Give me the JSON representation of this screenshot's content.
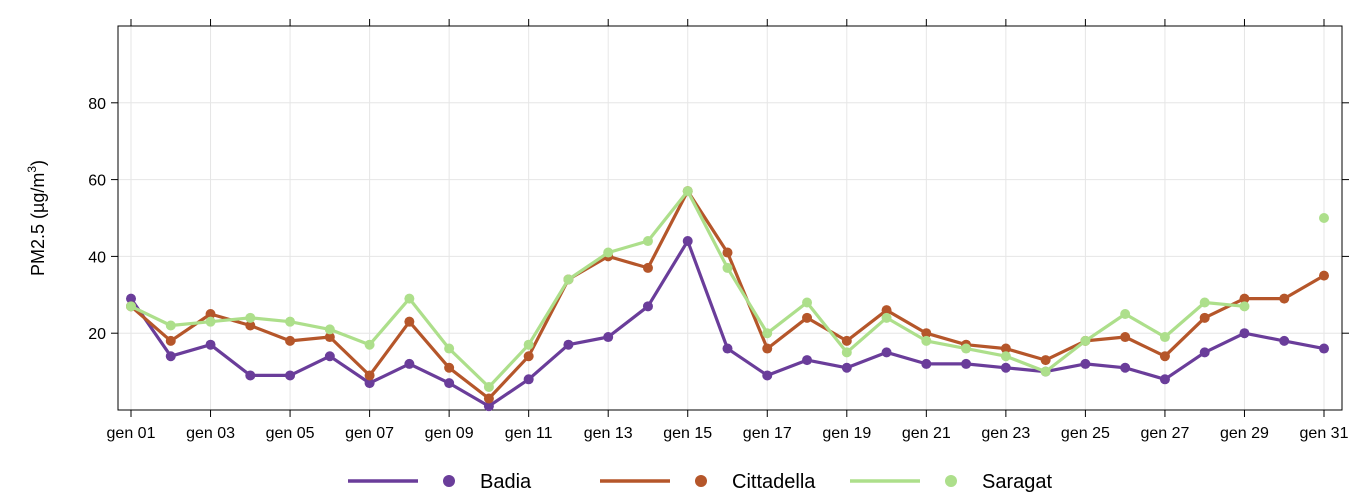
{
  "chart_data": {
    "type": "line",
    "ylabel": "PM2.5 (µg/m³)",
    "ylabel_parts": {
      "before": "PM2.5 (",
      "mu": "µ",
      "unit": "g/m",
      "sup": "3",
      "after": ")"
    },
    "xlim": [
      "gen 01",
      "gen 31"
    ],
    "ylim": [
      0,
      100
    ],
    "yticks": [
      20,
      40,
      60,
      80
    ],
    "xtick_labels": [
      "gen 01",
      "gen 03",
      "gen 05",
      "gen 07",
      "gen 09",
      "gen 11",
      "gen 13",
      "gen 15",
      "gen 17",
      "gen 19",
      "gen 21",
      "gen 23",
      "gen 25",
      "gen 27",
      "gen 29",
      "gen 31"
    ],
    "grid": true,
    "legend_position": "bottom",
    "x": [
      "gen 01",
      "gen 02",
      "gen 03",
      "gen 04",
      "gen 05",
      "gen 06",
      "gen 07",
      "gen 08",
      "gen 09",
      "gen 10",
      "gen 11",
      "gen 12",
      "gen 13",
      "gen 14",
      "gen 15",
      "gen 16",
      "gen 17",
      "gen 18",
      "gen 19",
      "gen 20",
      "gen 21",
      "gen 22",
      "gen 23",
      "gen 24",
      "gen 25",
      "gen 26",
      "gen 27",
      "gen 28",
      "gen 29",
      "gen 30",
      "gen 31"
    ],
    "series": [
      {
        "name": "Badia",
        "color": "#6a3d9a",
        "values": [
          29,
          14,
          17,
          9,
          9,
          14,
          7,
          12,
          7,
          1,
          8,
          17,
          19,
          27,
          44,
          16,
          9,
          13,
          11,
          15,
          12,
          12,
          11,
          10,
          12,
          11,
          8,
          15,
          20,
          18,
          16
        ]
      },
      {
        "name": "Cittadella",
        "color": "#b5562a",
        "values": [
          27,
          18,
          25,
          22,
          18,
          19,
          9,
          23,
          11,
          3,
          14,
          34,
          40,
          37,
          57,
          41,
          16,
          24,
          18,
          26,
          20,
          17,
          16,
          13,
          18,
          19,
          14,
          24,
          29,
          29,
          35
        ]
      },
      {
        "name": "Saragat",
        "color": "#addf8b",
        "values": [
          27,
          22,
          23,
          24,
          23,
          21,
          17,
          29,
          16,
          6,
          17,
          34,
          41,
          44,
          57,
          37,
          20,
          28,
          15,
          24,
          18,
          16,
          14,
          10,
          18,
          25,
          19,
          28,
          27,
          null,
          50
        ]
      }
    ]
  }
}
